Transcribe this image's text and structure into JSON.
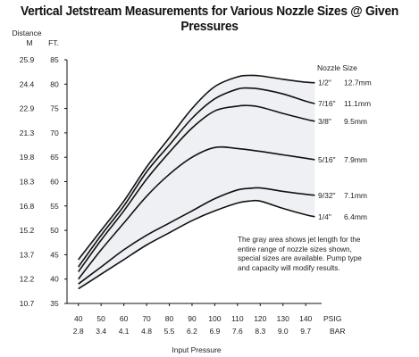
{
  "chart_data": {
    "type": "line",
    "title": "Vertical Jetstream Measurements for Various Nozzle Sizes @ Given Pressures",
    "y_axis_title": "Distance",
    "y_units": [
      "M",
      "FT."
    ],
    "x_units": [
      "PSIG",
      "BAR"
    ],
    "xlabel": "Input Pressure",
    "x_psig": [
      40,
      50,
      60,
      70,
      80,
      90,
      100,
      110,
      120,
      130,
      140
    ],
    "x_bar": [
      "2.8",
      "3.4",
      "4.1",
      "4.8",
      "5.5",
      "6.2",
      "6.9",
      "7.6",
      "8.3",
      "9.0",
      "9.7"
    ],
    "y_ft": [
      35,
      40,
      45,
      50,
      55,
      60,
      65,
      70,
      75,
      80,
      85
    ],
    "y_m": [
      "10.7",
      "12.2",
      "13.7",
      "15.2",
      "16.8",
      "18.3",
      "19.8",
      "21.3",
      "22.9",
      "24.4",
      "25.9"
    ],
    "xlim": [
      35,
      147
    ],
    "ylim": [
      35,
      85
    ],
    "legend_title": "Nozzle Size",
    "series": [
      {
        "name": "1/2\"",
        "metric": "12.7mm",
        "x": [
          40,
          50,
          60,
          70,
          80,
          90,
          100,
          110,
          115,
          120,
          130,
          140,
          144
        ],
        "y": [
          44,
          50,
          56,
          63,
          69,
          75,
          79.5,
          81.5,
          81.8,
          81.7,
          81,
          80.4,
          80.3
        ]
      },
      {
        "name": "7/16\"",
        "metric": "11.1mm",
        "x": [
          40,
          50,
          60,
          70,
          80,
          90,
          100,
          110,
          115,
          120,
          130,
          140,
          144
        ],
        "y": [
          42.5,
          49,
          55,
          62,
          67.5,
          73,
          77,
          79,
          79.2,
          79,
          78,
          76.5,
          76
        ]
      },
      {
        "name": "3/8\"",
        "metric": "9.5mm",
        "x": [
          40,
          50,
          60,
          70,
          80,
          90,
          100,
          110,
          115,
          120,
          130,
          140,
          144
        ],
        "y": [
          41.5,
          48,
          54,
          60.5,
          66,
          71,
          74.5,
          75.5,
          75.6,
          75.3,
          74,
          72.8,
          72.4
        ]
      },
      {
        "name": "5/16\"",
        "metric": "7.9mm",
        "x": [
          40,
          50,
          60,
          70,
          80,
          90,
          100,
          110,
          120,
          130,
          140,
          144
        ],
        "y": [
          40,
          46,
          51.5,
          57,
          61.5,
          65,
          67,
          66.8,
          66.2,
          65.5,
          64.8,
          64.5
        ]
      },
      {
        "name": "9/32\"",
        "metric": "7.1mm",
        "x": [
          40,
          50,
          60,
          70,
          80,
          90,
          100,
          110,
          115,
          120,
          130,
          140,
          144
        ],
        "y": [
          39,
          42.5,
          46,
          49,
          51.5,
          54,
          56.5,
          58.3,
          58.6,
          58.7,
          58,
          57.4,
          57.2
        ]
      },
      {
        "name": "1/4\"",
        "metric": "6.4mm",
        "x": [
          40,
          50,
          60,
          70,
          80,
          90,
          100,
          110,
          115,
          120,
          130,
          140,
          144
        ],
        "y": [
          38,
          41,
          44,
          47,
          49.5,
          52,
          54,
          55.6,
          56,
          56,
          54.5,
          53.2,
          52.8
        ]
      }
    ],
    "note": "The gray area shows jet length for the entire range of nozzle sizes shown, special sizes are available. Pump type and capacity will modify results.",
    "grid": false,
    "legend_placement": "right"
  }
}
